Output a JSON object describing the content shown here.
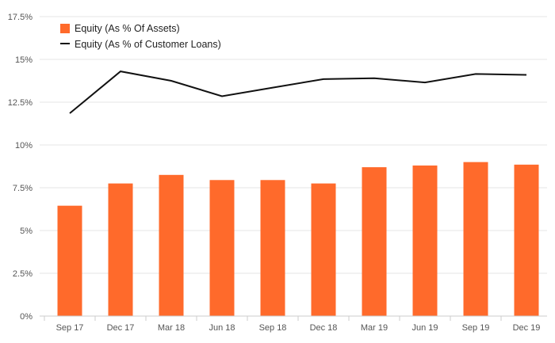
{
  "chart_data": {
    "type": "bar",
    "categories": [
      "Sep 17",
      "Dec 17",
      "Mar 18",
      "Jun 18",
      "Sep 18",
      "Dec 18",
      "Mar 19",
      "Jun 19",
      "Sep 19",
      "Dec 19"
    ],
    "series": [
      {
        "name": "Equity (As % Of Assets)",
        "type": "bar",
        "color": "#ff6a2b",
        "values": [
          6.45,
          7.75,
          8.25,
          7.95,
          7.95,
          7.75,
          8.7,
          8.8,
          9.0,
          8.85
        ]
      },
      {
        "name": "Equity (As % of Customer Loans)",
        "type": "line",
        "color": "#111111",
        "values": [
          11.85,
          14.3,
          13.75,
          12.85,
          13.35,
          13.85,
          13.9,
          13.65,
          14.15,
          14.1
        ]
      }
    ],
    "y_ticks": [
      "0%",
      "2.5%",
      "5%",
      "7.5%",
      "10%",
      "12.5%",
      "15%",
      "17.5%"
    ],
    "ylim": [
      0,
      17.5
    ],
    "grid": true,
    "legend_position": "top-left",
    "title": "",
    "xlabel": "",
    "ylabel": ""
  }
}
